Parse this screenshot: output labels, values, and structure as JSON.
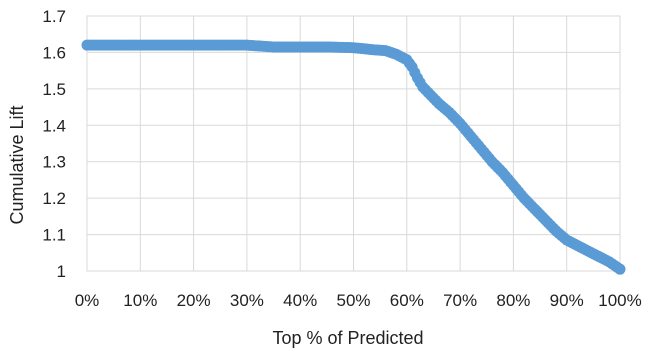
{
  "chart_data": {
    "type": "scatter",
    "title": "",
    "xlabel": "Top % of Predicted",
    "ylabel": "Cumulative Lift",
    "xlim": [
      0,
      100
    ],
    "ylim": [
      1,
      1.7
    ],
    "x_ticks": [
      0,
      10,
      20,
      30,
      40,
      50,
      60,
      70,
      80,
      90,
      100
    ],
    "x_tick_labels": [
      "0%",
      "10%",
      "20%",
      "30%",
      "40%",
      "50%",
      "60%",
      "70%",
      "80%",
      "90%",
      "100%"
    ],
    "y_ticks": [
      1,
      1.1,
      1.2,
      1.3,
      1.4,
      1.5,
      1.6,
      1.7
    ],
    "y_tick_labels": [
      "1",
      "1.1",
      "1.2",
      "1.3",
      "1.4",
      "1.5",
      "1.6",
      "1.7"
    ],
    "grid": true,
    "legend": "none",
    "series_color": "#5b9bd5",
    "grid_color": "#d9d9d9",
    "series": [
      {
        "x": [
          0,
          5,
          10,
          15,
          20,
          25,
          30,
          35,
          40,
          45,
          50,
          52,
          54,
          56,
          58,
          60,
          61,
          62,
          63,
          64,
          65,
          66,
          68,
          70,
          72,
          74,
          76,
          78,
          80,
          82,
          84,
          86,
          88,
          90,
          92,
          94,
          96,
          98,
          100
        ],
        "y": [
          1.62,
          1.62,
          1.62,
          1.62,
          1.62,
          1.62,
          1.62,
          1.615,
          1.615,
          1.615,
          1.613,
          1.61,
          1.607,
          1.605,
          1.595,
          1.58,
          1.56,
          1.53,
          1.505,
          1.49,
          1.475,
          1.46,
          1.435,
          1.405,
          1.37,
          1.335,
          1.3,
          1.27,
          1.235,
          1.2,
          1.17,
          1.14,
          1.11,
          1.085,
          1.07,
          1.055,
          1.04,
          1.025,
          1.005
        ]
      }
    ]
  }
}
